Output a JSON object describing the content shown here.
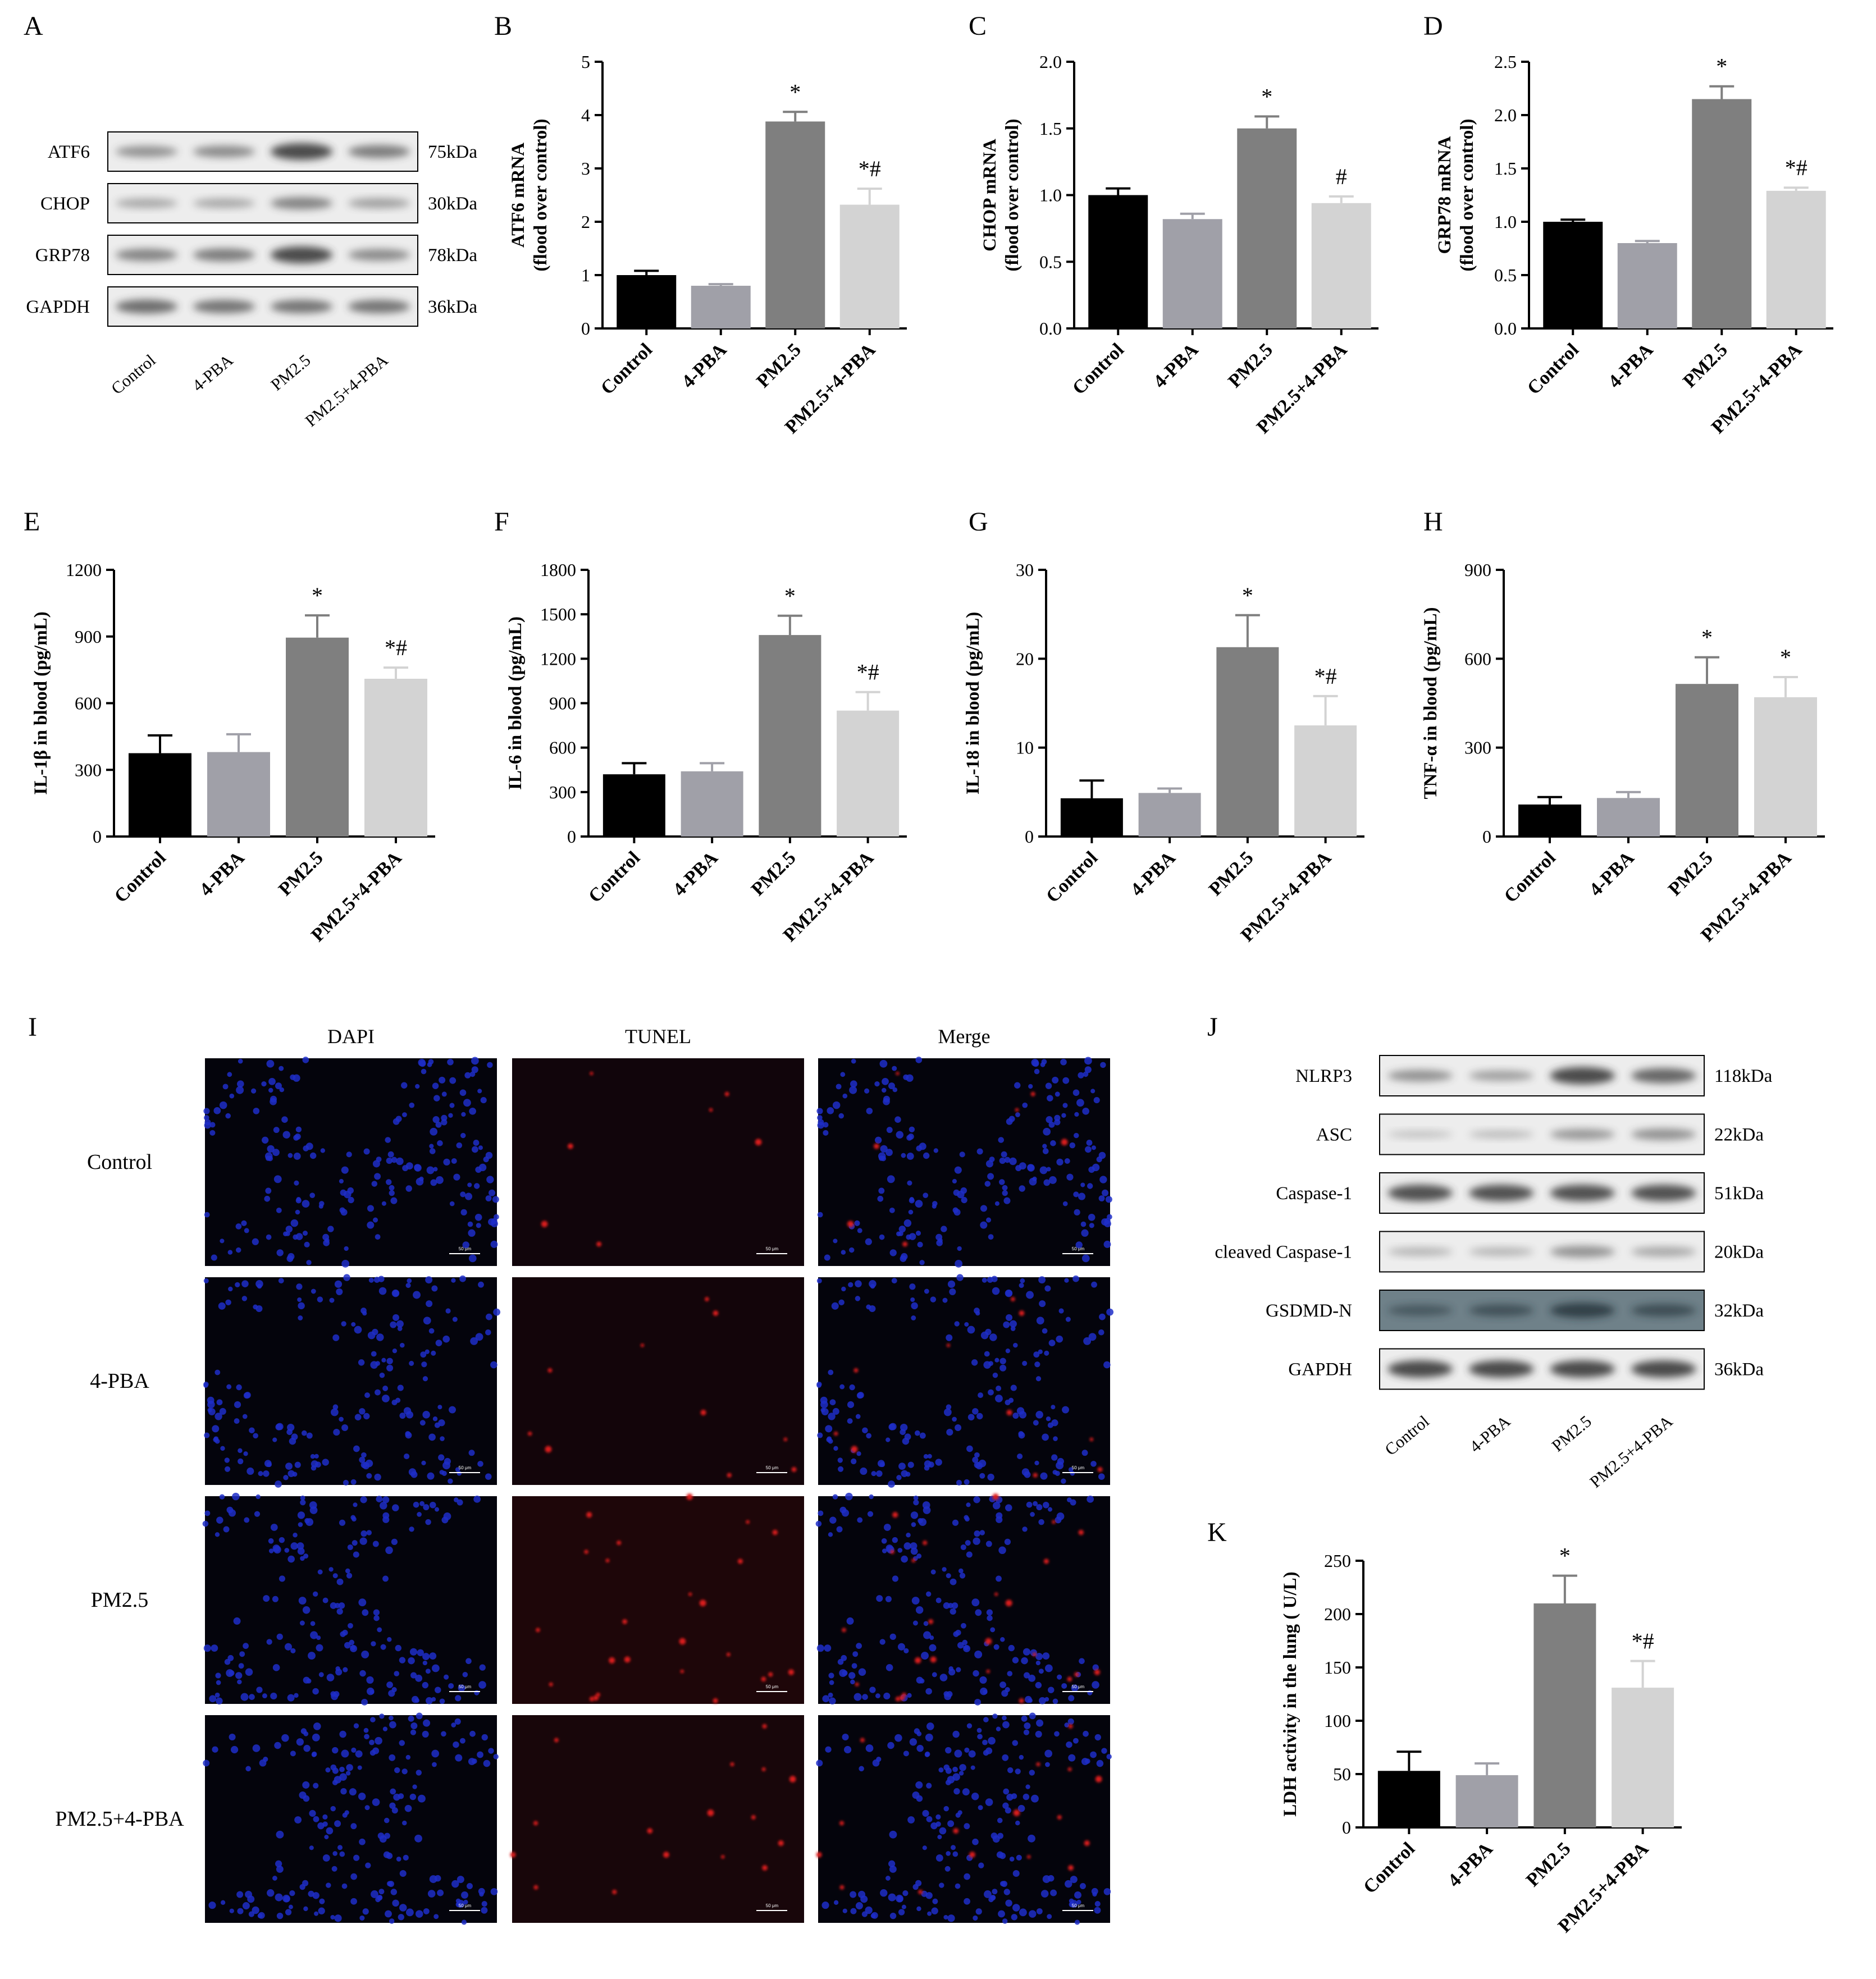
{
  "panel_letters": {
    "A": "A",
    "B": "B",
    "C": "C",
    "D": "D",
    "E": "E",
    "F": "F",
    "G": "G",
    "H": "H",
    "I": "I",
    "J": "J",
    "K": "K"
  },
  "colors": {
    "control": "#000000",
    "pba": "#a0a0a8",
    "pm25": "#7f7f7f",
    "pm25_pba": "#d3d3d3",
    "dapi": "#1e2ec8",
    "tunel": "#dc1e1e",
    "blot_band": "#3a3a3a",
    "blot_bg": "#ededed",
    "gsdmd_bg": "#6f8189"
  },
  "blot_A": {
    "rows": [
      {
        "label": "ATF6",
        "kda": "75kDa",
        "intensity": [
          0.45,
          0.5,
          0.95,
          0.6
        ]
      },
      {
        "label": "CHOP",
        "kda": "30kDa",
        "intensity": [
          0.3,
          0.3,
          0.55,
          0.35
        ]
      },
      {
        "label": "GRP78",
        "kda": "78kDa",
        "intensity": [
          0.55,
          0.6,
          0.95,
          0.5
        ]
      },
      {
        "label": "GAPDH",
        "kda": "36kDa",
        "intensity": [
          0.7,
          0.65,
          0.65,
          0.65
        ]
      }
    ],
    "lanes": [
      "Control",
      "4-PBA",
      "PM2.5",
      "PM2.5+4-PBA"
    ]
  },
  "blot_J": {
    "rows": [
      {
        "label": "NLRP3",
        "kda": "118kDa",
        "intensity": [
          0.45,
          0.35,
          0.95,
          0.75
        ]
      },
      {
        "label": "ASC",
        "kda": "22kDa",
        "intensity": [
          0.1,
          0.15,
          0.4,
          0.45
        ]
      },
      {
        "label": "Caspase-1",
        "kda": "51kDa",
        "intensity": [
          0.9,
          0.9,
          0.9,
          0.9
        ]
      },
      {
        "label": "cleaved Caspase-1",
        "kda": "20kDa",
        "intensity": [
          0.2,
          0.2,
          0.45,
          0.3
        ]
      },
      {
        "label": "GSDMD-N",
        "kda": "32kDa",
        "intensity": [
          0.4,
          0.5,
          0.75,
          0.55
        ]
      },
      {
        "label": "GAPDH",
        "kda": "36kDa",
        "intensity": [
          0.95,
          0.95,
          0.95,
          0.95
        ]
      }
    ],
    "lanes": [
      "Control",
      "4-PBA",
      "PM2.5",
      "PM2.5+4-PBA"
    ]
  },
  "fluorescence_I": {
    "columns": [
      "DAPI",
      "TUNEL",
      "Merge"
    ],
    "rows": [
      "Control",
      "4-PBA",
      "PM2.5",
      "PM2.5+4-PBA"
    ],
    "tunel_level": [
      0.2,
      0.3,
      1.0,
      0.6
    ],
    "scale_bar": "50 μm"
  },
  "chart_data": [
    {
      "panel": "B",
      "type": "bar",
      "categories": [
        "Control",
        "4-PBA",
        "PM2.5",
        "PM2.5+4-PBA"
      ],
      "values": [
        1.0,
        0.8,
        3.88,
        2.32
      ],
      "errors": [
        0.08,
        0.03,
        0.18,
        0.3
      ],
      "significance": [
        "",
        "",
        "*",
        "*#"
      ],
      "ylabel_lines": [
        "ATF6 mRNA",
        "(flood over control)"
      ],
      "ylim": [
        0,
        5
      ],
      "yticks": [
        "0",
        "1",
        "2",
        "3",
        "4",
        "5"
      ]
    },
    {
      "panel": "C",
      "type": "bar",
      "categories": [
        "Control",
        "4-PBA",
        "PM2.5",
        "PM2.5+4-PBA"
      ],
      "values": [
        1.0,
        0.82,
        1.5,
        0.94
      ],
      "errors": [
        0.05,
        0.04,
        0.09,
        0.05
      ],
      "significance": [
        "",
        "",
        "*",
        "#"
      ],
      "ylabel_lines": [
        "CHOP mRNA",
        "(flood over control)"
      ],
      "ylim": [
        0,
        2
      ],
      "yticks": [
        "0.0",
        "0.5",
        "1.0",
        "1.5",
        "2.0"
      ]
    },
    {
      "panel": "D",
      "type": "bar",
      "categories": [
        "Control",
        "4-PBA",
        "PM2.5",
        "PM2.5+4-PBA"
      ],
      "values": [
        1.0,
        0.8,
        2.15,
        1.29
      ],
      "errors": [
        0.02,
        0.02,
        0.12,
        0.03
      ],
      "significance": [
        "",
        "",
        "*",
        "*#"
      ],
      "ylabel_lines": [
        "GRP78 mRNA",
        "(flood over control)"
      ],
      "ylim": [
        0,
        2.5
      ],
      "yticks": [
        "0.0",
        "0.5",
        "1.0",
        "1.5",
        "2.0",
        "2.5"
      ]
    },
    {
      "panel": "E",
      "type": "bar",
      "categories": [
        "Control",
        "4-PBA",
        "PM2.5",
        "PM2.5+4-PBA"
      ],
      "values": [
        375,
        380,
        895,
        710
      ],
      "errors": [
        80,
        80,
        100,
        50
      ],
      "significance": [
        "",
        "",
        "*",
        "*#"
      ],
      "ylabel_lines": [
        "IL-1β in blood (pg/mL)"
      ],
      "ylim": [
        0,
        1200
      ],
      "yticks": [
        "0",
        "300",
        "600",
        "900",
        "1200"
      ]
    },
    {
      "panel": "F",
      "type": "bar",
      "categories": [
        "Control",
        "4-PBA",
        "PM2.5",
        "PM2.5+4-PBA"
      ],
      "values": [
        420,
        440,
        1360,
        850
      ],
      "errors": [
        75,
        55,
        130,
        125
      ],
      "significance": [
        "",
        "",
        "*",
        "*#"
      ],
      "ylabel_lines": [
        "IL-6 in blood (pg/mL)"
      ],
      "ylim": [
        0,
        1800
      ],
      "yticks": [
        "0",
        "300",
        "600",
        "900",
        "1200",
        "1500",
        "1800"
      ]
    },
    {
      "panel": "G",
      "type": "bar",
      "categories": [
        "Control",
        "4-PBA",
        "PM2.5",
        "PM2.5+4-PBA"
      ],
      "values": [
        4.3,
        4.9,
        21.3,
        12.5
      ],
      "errors": [
        2.0,
        0.5,
        3.6,
        3.3
      ],
      "significance": [
        "",
        "",
        "*",
        "*#"
      ],
      "ylabel_lines": [
        "IL-18 in blood (pg/mL)"
      ],
      "ylim": [
        0,
        30
      ],
      "yticks": [
        "0",
        "10",
        "20",
        "30"
      ]
    },
    {
      "panel": "H",
      "type": "bar",
      "categories": [
        "Control",
        "4-PBA",
        "PM2.5",
        "PM2.5+4-PBA"
      ],
      "values": [
        108,
        130,
        515,
        470
      ],
      "errors": [
        25,
        20,
        90,
        68
      ],
      "significance": [
        "",
        "",
        "*",
        "*"
      ],
      "ylabel_lines": [
        "TNF-α in blood (pg/mL)"
      ],
      "ylim": [
        0,
        900
      ],
      "yticks": [
        "0",
        "300",
        "600",
        "900"
      ]
    },
    {
      "panel": "K",
      "type": "bar",
      "categories": [
        "Control",
        "4-PBA",
        "PM2.5",
        "PM2.5+4-PBA"
      ],
      "values": [
        53,
        49,
        210,
        131
      ],
      "errors": [
        18,
        11,
        26,
        25
      ],
      "significance": [
        "",
        "",
        "*",
        "*#"
      ],
      "ylabel_lines": [
        "LDH activity in the lung ( U/L)"
      ],
      "ylim": [
        0,
        250
      ],
      "yticks": [
        "0",
        "50",
        "100",
        "150",
        "200",
        "250"
      ]
    }
  ]
}
